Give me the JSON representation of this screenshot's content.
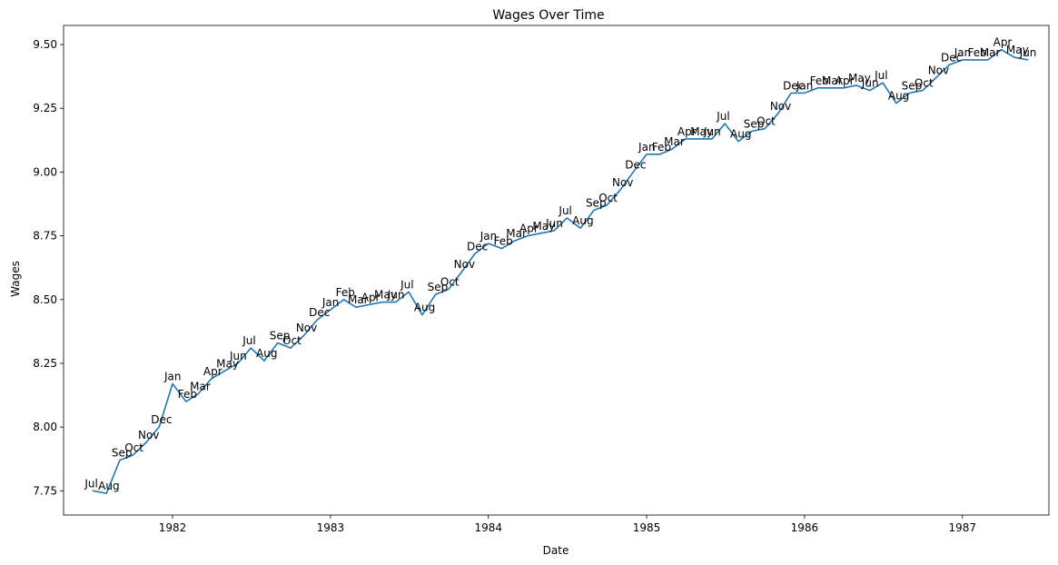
{
  "chart_data": {
    "type": "line",
    "title": "Wages Over Time",
    "xlabel": "Date",
    "ylabel": "Wages",
    "xlim": [
      "1981-04-24",
      "1987-07-20"
    ],
    "ylim": [
      7.655,
      9.575
    ],
    "grid": false,
    "legend": null,
    "line_color": "#1f77b4",
    "x_ticks": [
      "1982",
      "1983",
      "1984",
      "1985",
      "1986",
      "1987"
    ],
    "y_ticks": [
      "7.75",
      "8.00",
      "8.25",
      "8.50",
      "8.75",
      "9.00",
      "9.25",
      "9.50"
    ],
    "series": [
      {
        "points": [
          {
            "x": "1981-07",
            "y": 7.75,
            "label": "Jul"
          },
          {
            "x": "1981-08",
            "y": 7.74,
            "label": "Aug"
          },
          {
            "x": "1981-09",
            "y": 7.87,
            "label": "Sep"
          },
          {
            "x": "1981-10",
            "y": 7.89,
            "label": "Oct"
          },
          {
            "x": "1981-11",
            "y": 7.94,
            "label": "Nov"
          },
          {
            "x": "1981-12",
            "y": 8.0,
            "label": "Dec"
          },
          {
            "x": "1982-01",
            "y": 8.17,
            "label": "Jan"
          },
          {
            "x": "1982-02",
            "y": 8.1,
            "label": "Feb"
          },
          {
            "x": "1982-03",
            "y": 8.13,
            "label": "Mar"
          },
          {
            "x": "1982-04",
            "y": 8.19,
            "label": "Apr"
          },
          {
            "x": "1982-05",
            "y": 8.22,
            "label": "May"
          },
          {
            "x": "1982-06",
            "y": 8.25,
            "label": "Jun"
          },
          {
            "x": "1982-07",
            "y": 8.31,
            "label": "Jul"
          },
          {
            "x": "1982-08",
            "y": 8.26,
            "label": "Aug"
          },
          {
            "x": "1982-09",
            "y": 8.33,
            "label": "Sep"
          },
          {
            "x": "1982-10",
            "y": 8.31,
            "label": "Oct"
          },
          {
            "x": "1982-11",
            "y": 8.36,
            "label": "Nov"
          },
          {
            "x": "1982-12",
            "y": 8.42,
            "label": "Dec"
          },
          {
            "x": "1983-01",
            "y": 8.46,
            "label": "Jan"
          },
          {
            "x": "1983-02",
            "y": 8.5,
            "label": "Feb"
          },
          {
            "x": "1983-03",
            "y": 8.47,
            "label": "Mar"
          },
          {
            "x": "1983-04",
            "y": 8.48,
            "label": "Apr"
          },
          {
            "x": "1983-05",
            "y": 8.49,
            "label": "May"
          },
          {
            "x": "1983-06",
            "y": 8.49,
            "label": "Jun"
          },
          {
            "x": "1983-07",
            "y": 8.53,
            "label": "Jul"
          },
          {
            "x": "1983-08",
            "y": 8.44,
            "label": "Aug"
          },
          {
            "x": "1983-09",
            "y": 8.52,
            "label": "Sep"
          },
          {
            "x": "1983-10",
            "y": 8.54,
            "label": "Oct"
          },
          {
            "x": "1983-11",
            "y": 8.61,
            "label": "Nov"
          },
          {
            "x": "1983-12",
            "y": 8.68,
            "label": "Dec"
          },
          {
            "x": "1984-01",
            "y": 8.72,
            "label": "Jan"
          },
          {
            "x": "1984-02",
            "y": 8.7,
            "label": "Feb"
          },
          {
            "x": "1984-03",
            "y": 8.73,
            "label": "Mar"
          },
          {
            "x": "1984-04",
            "y": 8.75,
            "label": "Apr"
          },
          {
            "x": "1984-05",
            "y": 8.76,
            "label": "May"
          },
          {
            "x": "1984-06",
            "y": 8.77,
            "label": "Jun"
          },
          {
            "x": "1984-07",
            "y": 8.82,
            "label": "Jul"
          },
          {
            "x": "1984-08",
            "y": 8.78,
            "label": "Aug"
          },
          {
            "x": "1984-09",
            "y": 8.85,
            "label": "Sep"
          },
          {
            "x": "1984-10",
            "y": 8.87,
            "label": "Oct"
          },
          {
            "x": "1984-11",
            "y": 8.93,
            "label": "Nov"
          },
          {
            "x": "1984-12",
            "y": 9.0,
            "label": "Dec"
          },
          {
            "x": "1985-01",
            "y": 9.07,
            "label": "Jan"
          },
          {
            "x": "1985-02",
            "y": 9.07,
            "label": "Feb"
          },
          {
            "x": "1985-03",
            "y": 9.09,
            "label": "Mar"
          },
          {
            "x": "1985-04",
            "y": 9.13,
            "label": "Apr"
          },
          {
            "x": "1985-05",
            "y": 9.13,
            "label": "May"
          },
          {
            "x": "1985-06",
            "y": 9.13,
            "label": "Jun"
          },
          {
            "x": "1985-07",
            "y": 9.19,
            "label": "Jul"
          },
          {
            "x": "1985-08",
            "y": 9.12,
            "label": "Aug"
          },
          {
            "x": "1985-09",
            "y": 9.16,
            "label": "Sep"
          },
          {
            "x": "1985-10",
            "y": 9.17,
            "label": "Oct"
          },
          {
            "x": "1985-11",
            "y": 9.23,
            "label": "Nov"
          },
          {
            "x": "1985-12",
            "y": 9.31,
            "label": "Dec"
          },
          {
            "x": "1986-01",
            "y": 9.31,
            "label": "Jan"
          },
          {
            "x": "1986-02",
            "y": 9.33,
            "label": "Feb"
          },
          {
            "x": "1986-03",
            "y": 9.33,
            "label": "Mar"
          },
          {
            "x": "1986-04",
            "y": 9.33,
            "label": "Apr"
          },
          {
            "x": "1986-05",
            "y": 9.34,
            "label": "May"
          },
          {
            "x": "1986-06",
            "y": 9.32,
            "label": "Jun"
          },
          {
            "x": "1986-07",
            "y": 9.35,
            "label": "Jul"
          },
          {
            "x": "1986-08",
            "y": 9.27,
            "label": "Aug"
          },
          {
            "x": "1986-09",
            "y": 9.31,
            "label": "Sep"
          },
          {
            "x": "1986-10",
            "y": 9.32,
            "label": "Oct"
          },
          {
            "x": "1986-11",
            "y": 9.37,
            "label": "Nov"
          },
          {
            "x": "1986-12",
            "y": 9.42,
            "label": "Dec"
          },
          {
            "x": "1987-01",
            "y": 9.44,
            "label": "Jan"
          },
          {
            "x": "1987-02",
            "y": 9.44,
            "label": "Feb"
          },
          {
            "x": "1987-03",
            "y": 9.44,
            "label": "Mar"
          },
          {
            "x": "1987-04",
            "y": 9.48,
            "label": "Apr"
          },
          {
            "x": "1987-05",
            "y": 9.45,
            "label": "May"
          },
          {
            "x": "1987-06",
            "y": 9.44,
            "label": "Jun"
          }
        ]
      }
    ]
  }
}
